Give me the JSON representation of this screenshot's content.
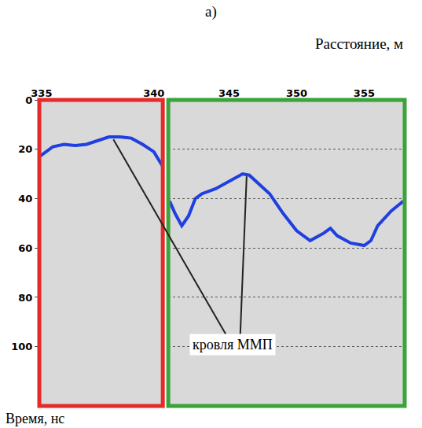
{
  "chart_data": {
    "type": "line",
    "title": "а)",
    "xlabel": "Расстояние, м",
    "ylabel": "Время, нс",
    "ylim": [
      124,
      0
    ],
    "yticks": [
      0,
      20,
      40,
      60,
      80,
      100
    ],
    "panels": [
      {
        "color": "#e52a2a",
        "grid": false,
        "xlim": [
          334.9,
          340.4
        ],
        "xticks": [
          335,
          340
        ],
        "series": [
          {
            "color": "#1f3fe0",
            "x": [
              334.9,
              335.5,
              336,
              336.5,
              337,
              337.5,
              338,
              338.5,
              339,
              339.5,
              340,
              340.4
            ],
            "values": [
              23,
              19,
              18,
              18.5,
              18,
              16.5,
              15,
              15,
              15.5,
              18,
              21,
              27
            ]
          }
        ]
      },
      {
        "color": "#3aa33a",
        "grid": true,
        "xlim": [
          340.5,
          358
        ],
        "xticks": [
          345,
          350,
          355
        ],
        "series": [
          {
            "color": "#1f3fe0",
            "x": [
              340.6,
              341,
              341.5,
              342,
              342.5,
              343,
              344,
              345,
              346,
              346.5,
              347,
              348,
              349,
              350,
              351,
              352,
              352.5,
              353,
              354,
              355,
              355.5,
              356,
              357,
              357.9
            ],
            "values": [
              41,
              46,
              51,
              47,
              40,
              38,
              36,
              33,
              30,
              30.5,
              33,
              38,
              46,
              53,
              57,
              54,
              52,
              55,
              58,
              59,
              57,
              51,
              45,
              41
            ]
          }
        ]
      }
    ],
    "annotation": {
      "text": "кровля ММП",
      "targets": [
        {
          "panel": 0,
          "x": 338.2,
          "y": 16
        },
        {
          "panel": 1,
          "x": 346.3,
          "y": 31
        }
      ]
    }
  }
}
